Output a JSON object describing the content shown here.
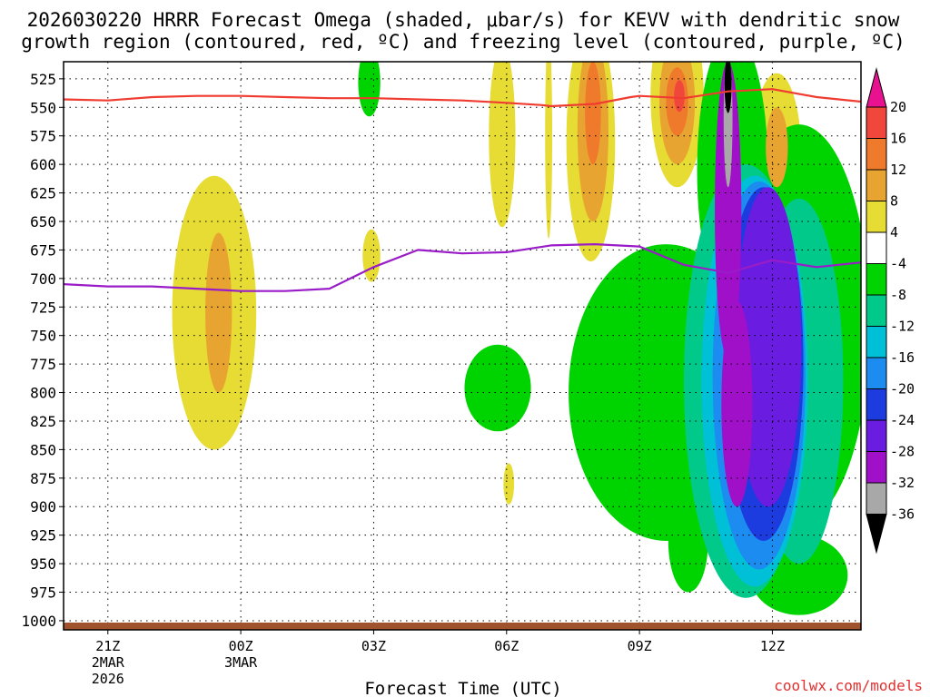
{
  "chart_data": {
    "type": "heatmap",
    "title_line1": "2026030220 HRRR Forecast Omega (shaded, μbar/s) for KEVV with dendritic snow",
    "title_line2": "growth region (contoured, red, ºC) and freezing level (contoured, purple, ºC)",
    "xlabel": "Forecast Time (UTC)",
    "credit": "coolwx.com/models",
    "x_domain": [
      -1,
      17
    ],
    "y_domain": [
      510,
      1008
    ],
    "y_ticks": [
      525,
      550,
      575,
      600,
      625,
      650,
      675,
      700,
      725,
      750,
      775,
      800,
      825,
      850,
      875,
      900,
      925,
      950,
      975,
      1000
    ],
    "y_tick_labels": [
      "525",
      "550",
      "575",
      "600",
      "625",
      "650",
      "675",
      "700",
      "725",
      "750",
      "775",
      "800",
      "825",
      "850",
      "875",
      "900",
      "925",
      "950",
      "975",
      "1000"
    ],
    "x_ticks": [
      {
        "hour": 0,
        "label": "21Z",
        "sub1": "2MAR",
        "sub2": "2026"
      },
      {
        "hour": 3,
        "label": "00Z",
        "sub1": "3MAR",
        "sub2": ""
      },
      {
        "hour": 6,
        "label": "03Z",
        "sub1": "",
        "sub2": ""
      },
      {
        "hour": 9,
        "label": "06Z",
        "sub1": "",
        "sub2": ""
      },
      {
        "hour": 12,
        "label": "09Z",
        "sub1": "",
        "sub2": ""
      },
      {
        "hour": 15,
        "label": "12Z",
        "sub1": "",
        "sub2": ""
      }
    ],
    "colorbar": {
      "labels": [
        "20",
        "16",
        "12",
        "8",
        "4",
        "-4",
        "-8",
        "-12",
        "-16",
        "-20",
        "-24",
        "-28",
        "-32",
        "-36"
      ],
      "bins": [
        {
          "min": 20,
          "max": 24,
          "color": "#e8118f"
        },
        {
          "min": 16,
          "max": 20,
          "color": "#f0463c"
        },
        {
          "min": 12,
          "max": 16,
          "color": "#f07a2c"
        },
        {
          "min": 8,
          "max": 12,
          "color": "#e8a430"
        },
        {
          "min": 4,
          "max": 8,
          "color": "#e6dc34"
        },
        {
          "min": -4,
          "max": 4,
          "color": "#ffffff"
        },
        {
          "min": -8,
          "max": -4,
          "color": "#00d400"
        },
        {
          "min": -12,
          "max": -8,
          "color": "#00c98a"
        },
        {
          "min": -16,
          "max": -12,
          "color": "#00c0d8"
        },
        {
          "min": -20,
          "max": -16,
          "color": "#1c8cf0"
        },
        {
          "min": -24,
          "max": -20,
          "color": "#1c3ce0"
        },
        {
          "min": -28,
          "max": -24,
          "color": "#6a1ce0"
        },
        {
          "min": -32,
          "max": -28,
          "color": "#a010c8"
        },
        {
          "min": -36,
          "max": -32,
          "color": "#a8a8a8"
        },
        {
          "min": -40,
          "max": -36,
          "color": "#000000"
        }
      ]
    },
    "dgz_line": {
      "name": "dendritic snow growth region (red)",
      "color": "#f03c30",
      "x": [
        -1,
        0,
        1,
        2,
        3,
        4,
        5,
        6,
        7,
        8,
        9,
        9.8,
        10,
        11,
        11.8,
        12,
        13,
        14,
        15,
        16,
        17
      ],
      "y": [
        543,
        544,
        541,
        540,
        540,
        541,
        542,
        542,
        543,
        544,
        546,
        548,
        549,
        547,
        541,
        540,
        542,
        536,
        534,
        541,
        545
      ]
    },
    "freezing_line": {
      "name": "freezing level (purple)",
      "color": "#9a1cc8",
      "x": [
        -1,
        0,
        1,
        2,
        3,
        4,
        5,
        6,
        7,
        8,
        9,
        10,
        11,
        12,
        13,
        14,
        15,
        16,
        17
      ],
      "y": [
        705,
        707,
        707,
        709,
        711,
        711,
        709,
        690,
        675,
        678,
        677,
        671,
        670,
        672,
        688,
        695,
        684,
        690,
        686
      ]
    },
    "fields": [
      {
        "name": "pos-a1",
        "value": 6,
        "t": 2.4,
        "p": 730,
        "rt": 0.95,
        "rp": 120
      },
      {
        "name": "pos-a2",
        "value": 10,
        "t": 2.5,
        "p": 730,
        "rt": 0.3,
        "rp": 70
      },
      {
        "name": "pos-b",
        "value": 6,
        "t": 5.95,
        "p": 680,
        "rt": 0.2,
        "rp": 23
      },
      {
        "name": "pos-c1",
        "value": 6,
        "t": 8.9,
        "p": 575,
        "rt": 0.3,
        "rp": 80
      },
      {
        "name": "pos-c2",
        "value": 6,
        "t": 9.05,
        "p": 880,
        "rt": 0.12,
        "rp": 18
      },
      {
        "name": "pos-d0",
        "value": 5,
        "t": 9.95,
        "p": 575,
        "rt": 0.08,
        "rp": 90
      },
      {
        "name": "pos-d1",
        "value": 6,
        "t": 10.9,
        "p": 580,
        "rt": 0.55,
        "rp": 105
      },
      {
        "name": "pos-d2",
        "value": 10,
        "t": 10.95,
        "p": 570,
        "rt": 0.35,
        "rp": 80
      },
      {
        "name": "pos-d3",
        "value": 14,
        "t": 10.95,
        "p": 555,
        "rt": 0.18,
        "rp": 45
      },
      {
        "name": "pos-e1",
        "value": 6,
        "t": 12.85,
        "p": 540,
        "rt": 0.6,
        "rp": 80
      },
      {
        "name": "pos-e2",
        "value": 10,
        "t": 12.85,
        "p": 545,
        "rt": 0.4,
        "rp": 55
      },
      {
        "name": "pos-e3",
        "value": 14,
        "t": 12.85,
        "p": 545,
        "rt": 0.25,
        "rp": 30
      },
      {
        "name": "pos-e4",
        "value": 18,
        "t": 12.9,
        "p": 540,
        "rt": 0.12,
        "rp": 14
      },
      {
        "name": "pos-f1",
        "value": 6,
        "t": 15.1,
        "p": 590,
        "rt": 0.55,
        "rp": 70
      },
      {
        "name": "pos-f2",
        "value": 10,
        "t": 15.1,
        "p": 585,
        "rt": 0.25,
        "rp": 35
      },
      {
        "name": "pos-g",
        "value": 6,
        "t": 15.05,
        "p": 927,
        "rt": 0.25,
        "rp": 45
      },
      {
        "name": "pos-h",
        "value": 6,
        "t": 16.85,
        "p": 700,
        "rt": 0.2,
        "rp": 55
      },
      {
        "name": "neg-a",
        "value": -6,
        "t": 5.9,
        "p": 528,
        "rt": 0.25,
        "rp": 30
      },
      {
        "name": "neg-b",
        "value": -6,
        "t": 8.8,
        "p": 796,
        "rt": 0.75,
        "rp": 38
      },
      {
        "name": "neg-c1",
        "value": -6,
        "t": 12.6,
        "p": 800,
        "rt": 2.2,
        "rp": 130
      },
      {
        "name": "neg-c2",
        "value": -6,
        "t": 13.1,
        "p": 930,
        "rt": 0.45,
        "rp": 45
      },
      {
        "name": "neg-c3",
        "value": -6,
        "t": 14.1,
        "p": 605,
        "rt": 0.8,
        "rp": 120
      },
      {
        "name": "neg-c4",
        "value": -6,
        "t": 15.6,
        "p": 740,
        "rt": 1.6,
        "rp": 175
      },
      {
        "name": "neg-c5",
        "value": -6,
        "t": 15.6,
        "p": 960,
        "rt": 1.1,
        "rp": 35
      },
      {
        "name": "neg-d1",
        "value": -10,
        "t": 14.4,
        "p": 790,
        "rt": 1.4,
        "rp": 190
      },
      {
        "name": "neg-d2",
        "value": -10,
        "t": 15.6,
        "p": 790,
        "rt": 1.0,
        "rp": 160
      },
      {
        "name": "neg-e",
        "value": -14,
        "t": 14.6,
        "p": 790,
        "rt": 1.2,
        "rp": 180
      },
      {
        "name": "neg-f",
        "value": -18,
        "t": 14.7,
        "p": 785,
        "rt": 1.05,
        "rp": 170
      },
      {
        "name": "neg-g",
        "value": -22,
        "t": 14.8,
        "p": 775,
        "rt": 0.9,
        "rp": 155
      },
      {
        "name": "neg-h",
        "value": -26,
        "t": 14.9,
        "p": 760,
        "rt": 0.75,
        "rp": 140
      },
      {
        "name": "neg-i1",
        "value": -30,
        "t": 14.0,
        "p": 640,
        "rt": 0.3,
        "rp": 130
      },
      {
        "name": "neg-i2",
        "value": -30,
        "t": 14.2,
        "p": 810,
        "rt": 0.35,
        "rp": 90
      },
      {
        "name": "neg-j",
        "value": -34,
        "t": 14.0,
        "p": 560,
        "rt": 0.1,
        "rp": 60
      },
      {
        "name": "neg-k",
        "value": -38,
        "t": 14.0,
        "p": 530,
        "rt": 0.08,
        "rp": 25
      }
    ]
  }
}
